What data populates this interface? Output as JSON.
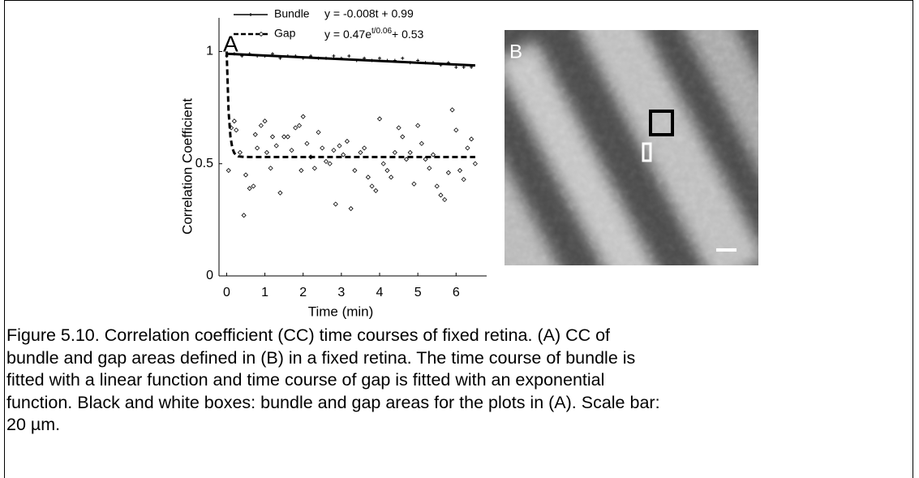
{
  "chart_data": {
    "type": "scatter",
    "panel_label": "A",
    "xlabel": "Time (min)",
    "ylabel": "Correlation Coefficient",
    "xlim": [
      -0.2,
      6.8
    ],
    "xticks": [
      0,
      1,
      2,
      3,
      4,
      5,
      6
    ],
    "ylim": [
      0,
      1.15
    ],
    "yticks": [
      0,
      0.5,
      1
    ],
    "legend_equations": [
      {
        "base": "y = -0.008t + 0.99"
      },
      {
        "base": "y = 0.47e",
        "sup": "t/0.06",
        "tail": "+ 0.53"
      }
    ],
    "series": [
      {
        "name": "Bundle",
        "color": "#000000",
        "marker": "plus",
        "line": "solid",
        "x": [
          0,
          0.2,
          0.4,
          0.6,
          0.8,
          1.0,
          1.2,
          1.4,
          1.6,
          1.8,
          2.0,
          2.2,
          2.4,
          2.6,
          2.8,
          3.0,
          3.2,
          3.4,
          3.6,
          3.8,
          4.0,
          4.2,
          4.4,
          4.6,
          4.8,
          5.0,
          5.2,
          5.4,
          5.6,
          5.8,
          6.0,
          6.2,
          6.4
        ],
        "values": [
          0.98,
          0.99,
          0.98,
          0.99,
          0.98,
          0.98,
          0.99,
          0.97,
          0.98,
          0.98,
          0.97,
          0.98,
          0.97,
          0.97,
          0.98,
          0.97,
          0.98,
          0.96,
          0.97,
          0.96,
          0.97,
          0.96,
          0.96,
          0.97,
          0.95,
          0.96,
          0.95,
          0.95,
          0.94,
          0.95,
          0.93,
          0.93,
          0.93
        ],
        "fit": {
          "x": [
            0,
            6.5
          ],
          "values": [
            0.99,
            0.938
          ]
        }
      },
      {
        "name": "Gap",
        "color": "#000000",
        "marker": "diamond",
        "line": "dashed",
        "x": [
          0.05,
          0.12,
          0.2,
          0.25,
          0.35,
          0.45,
          0.5,
          0.6,
          0.7,
          0.75,
          0.8,
          0.9,
          1.0,
          1.05,
          1.15,
          1.2,
          1.3,
          1.4,
          1.5,
          1.6,
          1.7,
          1.8,
          1.9,
          1.95,
          2.0,
          2.1,
          2.2,
          2.3,
          2.4,
          2.5,
          2.6,
          2.7,
          2.8,
          2.85,
          2.95,
          3.05,
          3.15,
          3.25,
          3.35,
          3.5,
          3.6,
          3.7,
          3.8,
          3.9,
          4.0,
          4.1,
          4.2,
          4.3,
          4.4,
          4.5,
          4.6,
          4.7,
          4.8,
          4.9,
          5.0,
          5.1,
          5.2,
          5.3,
          5.4,
          5.5,
          5.6,
          5.7,
          5.8,
          5.9,
          6.0,
          6.1,
          6.2,
          6.3,
          6.4,
          6.5
        ],
        "values": [
          0.47,
          0.66,
          0.69,
          0.65,
          0.55,
          0.27,
          0.45,
          0.39,
          0.4,
          0.63,
          0.57,
          0.67,
          0.69,
          0.55,
          0.48,
          0.62,
          0.58,
          0.37,
          0.62,
          0.62,
          0.56,
          0.66,
          0.67,
          0.47,
          0.71,
          0.59,
          0.53,
          0.48,
          0.64,
          0.57,
          0.51,
          0.5,
          0.56,
          0.32,
          0.58,
          0.54,
          0.6,
          0.3,
          0.47,
          0.55,
          0.57,
          0.44,
          0.4,
          0.38,
          0.7,
          0.5,
          0.47,
          0.44,
          0.55,
          0.66,
          0.62,
          0.52,
          0.55,
          0.41,
          0.67,
          0.59,
          0.52,
          0.48,
          0.54,
          0.4,
          0.36,
          0.34,
          0.46,
          0.74,
          0.65,
          0.47,
          0.43,
          0.57,
          0.61,
          0.5
        ],
        "fit": {
          "x": [
            0,
            0.05,
            0.1,
            0.15,
            0.2,
            0.3,
            0.4,
            0.6,
            6.5
          ],
          "values": [
            1.0,
            0.734,
            0.619,
            0.569,
            0.547,
            0.533,
            0.531,
            0.53,
            0.53
          ]
        }
      }
    ]
  },
  "panel_b": {
    "label": "B"
  },
  "caption": {
    "lines": [
      "Figure 5.10. Correlation coefficient (CC) time courses of fixed retina. (A) CC of",
      "bundle and gap areas defined in (B) in a fixed retina. The time course of bundle is",
      "fitted with a linear function and time course of gap is fitted with an exponential",
      "function. Black and white boxes: bundle and gap areas for the plots in (A). Scale bar:",
      "20 µm."
    ]
  }
}
